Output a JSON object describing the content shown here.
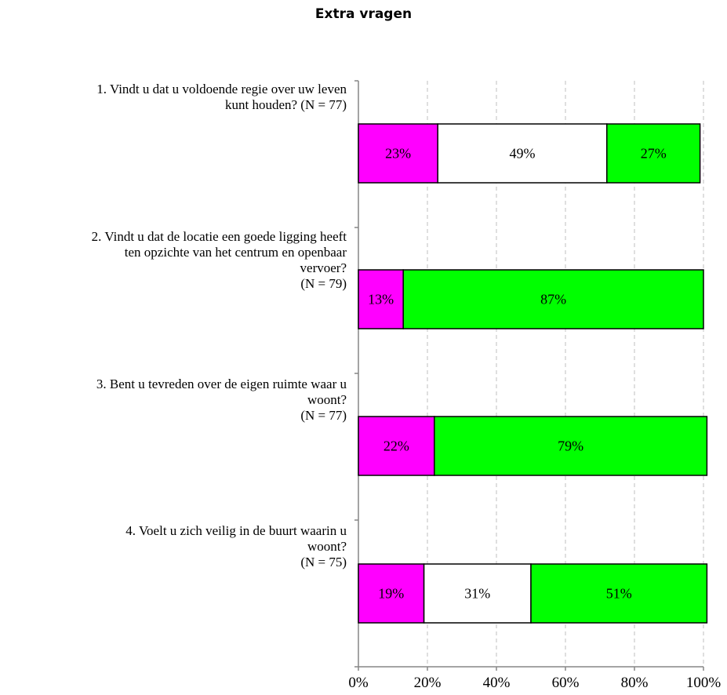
{
  "chart_data": {
    "type": "bar",
    "orientation": "horizontal",
    "stacked": true,
    "title": "Extra vragen",
    "categories": [
      [
        "1. Vindt u dat u voldoende regie over uw leven",
        "kunt houden? (N = 77)"
      ],
      [
        "2. Vindt u dat de locatie een goede ligging heeft",
        "ten opzichte van het centrum en openbaar",
        "vervoer?",
        "(N =  79)"
      ],
      [
        "3. Bent u tevreden over de eigen ruimte waar u",
        "woont?",
        "(N = 77)"
      ],
      [
        "4. Voelt u zich veilig in de buurt waarin u",
        "woont?",
        "(N = 75)"
      ]
    ],
    "series": [
      {
        "color": "#ff00ff",
        "values": [
          23,
          13,
          22,
          19
        ],
        "labels": [
          "23%",
          "13%",
          "22%",
          "19%"
        ]
      },
      {
        "color": "#ffffff",
        "values": [
          49,
          0,
          0,
          31
        ],
        "labels": [
          "49%",
          "",
          "",
          "31%"
        ]
      },
      {
        "color": "#00ff00",
        "values": [
          27,
          87,
          79,
          51
        ],
        "labels": [
          "27%",
          "87%",
          "79%",
          "51%"
        ]
      }
    ],
    "xlim": [
      0,
      100
    ],
    "x_ticks": [
      "0%",
      "20%",
      "40%",
      "60%",
      "80%",
      "100%"
    ],
    "grid": "vertical-dashed",
    "legend": "none"
  }
}
